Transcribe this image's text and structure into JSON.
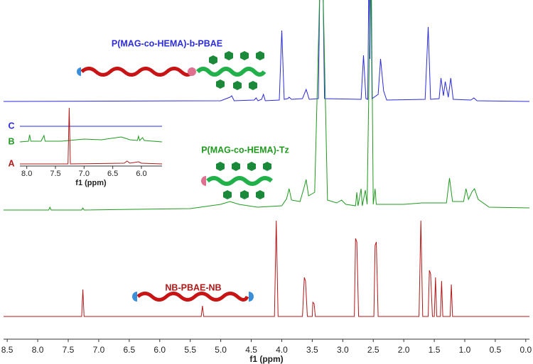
{
  "chart_data": [
    {
      "type": "line",
      "xlabel": "f1 (ppm)",
      "xlim": [
        8.56,
        -0.06
      ],
      "xticks": [
        8.5,
        {
          "value": 8,
          "label": "8.0"
        },
        7.5,
        {
          "value": 7,
          "label": "7.0"
        },
        6.5,
        {
          "value": 6,
          "label": "6.0"
        },
        5.5,
        {
          "value": 5,
          "label": "5.0"
        },
        4.5,
        {
          "value": 4,
          "label": "4.0"
        },
        3.5,
        {
          "value": 3,
          "label": "3.0"
        },
        2.5,
        {
          "value": 2,
          "label": "2.0"
        },
        1.5,
        {
          "value": 1,
          "label": "1.0"
        },
        0.5,
        {
          "value": 0,
          "label": "0.0"
        }
      ],
      "series": [
        {
          "name": "P(MAG-co-HEMA)-b-PBAE",
          "color": "#2b2bdc",
          "x": [
            8.56,
            5.0,
            4.85,
            4.82,
            4.78,
            4.45,
            4.42,
            4.39,
            4.33,
            4.3,
            4.27,
            4.04,
            4.0,
            3.96,
            3.9,
            3.88,
            3.84,
            3.66,
            3.6,
            3.55,
            3.4,
            3.37,
            3.33,
            3.3,
            2.7,
            2.66,
            2.62,
            2.59,
            2.57,
            2.555,
            2.54,
            2.52,
            2.42,
            2.38,
            2.33,
            2.28,
            1.65,
            1.6,
            1.56,
            1.42,
            1.39,
            1.35,
            1.32,
            1.27,
            1.23,
            1.19,
            0.9,
            0.85,
            0.8,
            -0.06
          ],
          "values": [
            0,
            1,
            6,
            8,
            1,
            2,
            5,
            1,
            3,
            10,
            1,
            2,
            100,
            3,
            4,
            6,
            3,
            4,
            17,
            3,
            4,
            200,
            200,
            4,
            3,
            65,
            4,
            3,
            200,
            60,
            200,
            4,
            10,
            60,
            15,
            2,
            3,
            105,
            3,
            4,
            33,
            8,
            28,
            6,
            33,
            3,
            2,
            5,
            1,
            0
          ]
        },
        {
          "name": "P(MAG-co-HEMA)-Tz",
          "color": "#1f9a1f",
          "x": [
            8.56,
            7.82,
            7.8,
            7.78,
            7.28,
            7.26,
            7.24,
            5.5,
            5.0,
            4.85,
            4.7,
            4.4,
            4.0,
            3.92,
            3.88,
            3.84,
            3.7,
            3.64,
            3.6,
            3.56,
            3.46,
            3.38,
            3.32,
            3.25,
            3.1,
            3.02,
            2.95,
            2.79,
            2.77,
            2.75,
            2.7,
            2.68,
            2.63,
            2.6,
            2.55,
            2.53,
            2.5,
            2.47,
            2.45,
            2.0,
            1.7,
            1.3,
            1.25,
            1.2,
            1.02,
            0.98,
            0.94,
            0.88,
            0.84,
            0.78,
            0.6,
            -0.06
          ],
          "values": [
            0,
            0,
            4,
            0,
            0,
            3,
            0,
            2,
            8,
            12,
            8,
            4,
            6,
            16,
            30,
            14,
            12,
            30,
            43,
            20,
            25,
            300,
            300,
            14,
            10,
            14,
            8,
            6,
            25,
            6,
            30,
            6,
            28,
            8,
            300,
            300,
            8,
            30,
            8,
            8,
            10,
            10,
            45,
            12,
            12,
            30,
            15,
            26,
            30,
            15,
            4,
            3
          ]
        },
        {
          "name": "NB-PBAE-NB",
          "color": "#b01818",
          "x": [
            8.56,
            7.28,
            7.26,
            7.24,
            5.32,
            5.3,
            5.28,
            4.12,
            4.09,
            4.06,
            3.66,
            3.63,
            3.61,
            3.58,
            3.5,
            3.49,
            3.47,
            3.45,
            2.81,
            2.79,
            2.77,
            2.74,
            2.49,
            2.47,
            2.45,
            2.42,
            1.75,
            1.72,
            1.69,
            1.6,
            1.58,
            1.56,
            1.53,
            1.5,
            1.48,
            1.46,
            1.4,
            1.38,
            1.36,
            1.24,
            1.22,
            1.2,
            -0.06
          ],
          "values": [
            0,
            0,
            38,
            0,
            0,
            15,
            0,
            0,
            135,
            0,
            0,
            55,
            50,
            0,
            0,
            20,
            18,
            0,
            0,
            110,
            105,
            0,
            0,
            100,
            105,
            0,
            0,
            135,
            0,
            0,
            65,
            60,
            0,
            0,
            55,
            0,
            0,
            50,
            0,
            0,
            45,
            0,
            0
          ]
        }
      ]
    },
    {
      "type": "line",
      "xlabel": "f1 (ppm)",
      "xlim": [
        8.12,
        5.64
      ],
      "xticks": [
        {
          "value": 8,
          "label": "8.0"
        },
        7.5,
        {
          "value": 7,
          "label": "7.0"
        },
        6.5,
        {
          "value": 6,
          "label": "6.0"
        }
      ],
      "series": [
        {
          "name": "C",
          "color": "#2b2bdc",
          "x": [
            8.12,
            5.64
          ],
          "values": [
            0,
            0
          ]
        },
        {
          "name": "B",
          "color": "#1f9a1f",
          "x": [
            8.12,
            7.97,
            7.95,
            7.93,
            7.75,
            7.72,
            7.7,
            7.68,
            7.4,
            7.0,
            6.7,
            6.35,
            6.2,
            6.07,
            6.05,
            6.03,
            5.98,
            5.95,
            5.64
          ],
          "values": [
            0,
            1,
            10,
            1,
            1,
            6,
            9,
            1,
            1,
            4,
            3,
            7,
            3,
            2,
            8,
            2,
            6,
            2,
            0
          ]
        },
        {
          "name": "A",
          "color": "#b01818",
          "x": [
            8.12,
            7.28,
            7.26,
            7.24,
            6.3,
            6.25,
            6.2,
            6.05,
            6.0,
            5.64
          ],
          "values": [
            0,
            0,
            79,
            0,
            1,
            4,
            1,
            3,
            1,
            0
          ]
        }
      ]
    }
  ]
}
